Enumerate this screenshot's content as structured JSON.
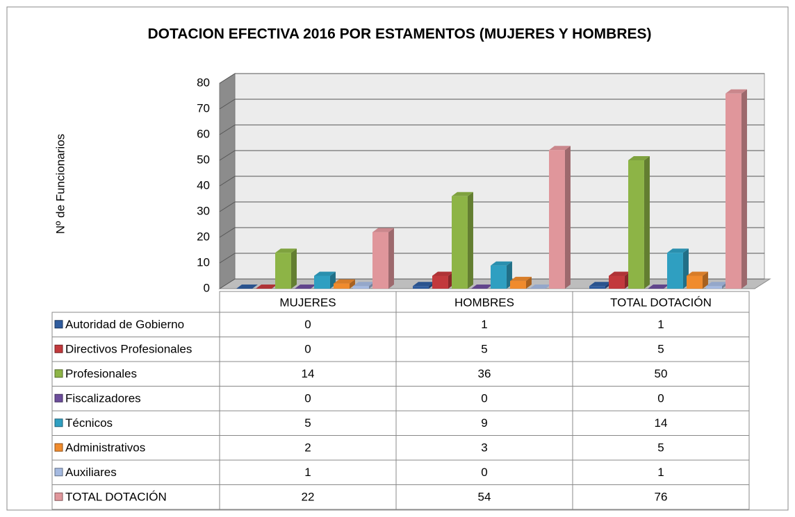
{
  "chart_data": {
    "type": "bar3d",
    "title": "DOTACION EFECTIVA 2016 POR ESTAMENTOS (MUJERES Y HOMBRES)",
    "y_label": "Nº de Funcionarios",
    "categories": [
      "MUJERES",
      "HOMBRES",
      "TOTAL DOTACIÓN"
    ],
    "series": [
      {
        "name": "Autoridad de Gobierno",
        "color": "#2f5c9e",
        "values": [
          0,
          1,
          1
        ]
      },
      {
        "name": "Directivos Profesionales",
        "color": "#c2393c",
        "values": [
          0,
          5,
          5
        ]
      },
      {
        "name": "Profesionales",
        "color": "#8db446",
        "values": [
          14,
          36,
          50
        ]
      },
      {
        "name": "Fiscalizadores",
        "color": "#6c4d9b",
        "values": [
          0,
          0,
          0
        ]
      },
      {
        "name": "Técnicos",
        "color": "#2f9fc1",
        "values": [
          5,
          9,
          14
        ]
      },
      {
        "name": "Administrativos",
        "color": "#f08b2d",
        "values": [
          2,
          3,
          5
        ]
      },
      {
        "name": "Auxiliares",
        "color": "#a4b9e0",
        "values": [
          1,
          0,
          1
        ]
      },
      {
        "name": "TOTAL DOTACIÓN",
        "color": "#e0969b",
        "values": [
          22,
          54,
          76
        ]
      }
    ],
    "ylim": [
      0,
      80
    ],
    "yticks": [
      0,
      10,
      20,
      30,
      40,
      50,
      60,
      70,
      80
    ],
    "grid": true
  }
}
